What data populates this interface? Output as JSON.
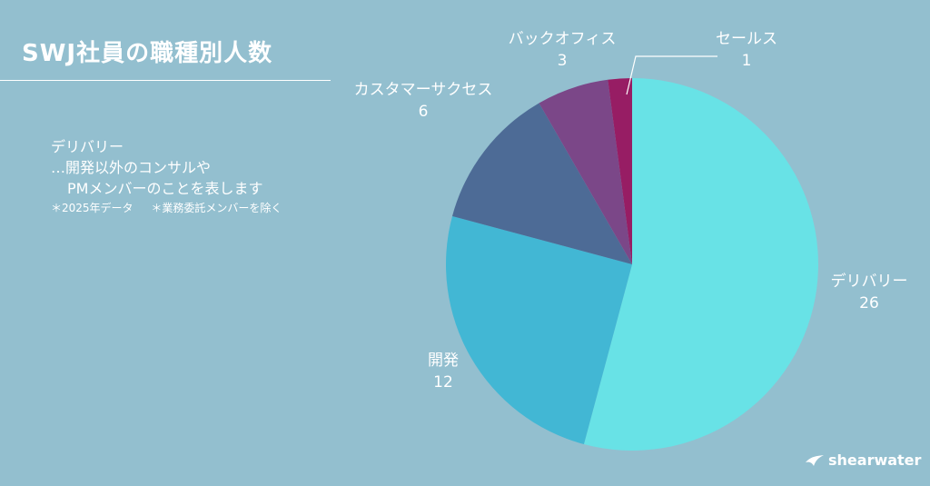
{
  "title": "SWJ社員の職種別人数",
  "note": {
    "line1": "デリバリー",
    "line2": "…開発以外のコンサルや",
    "line3": "PMメンバーのことを表します",
    "footnote1": "＊2025年データ",
    "footnote2": "＊業務委託メンバーを除く"
  },
  "logo": {
    "text": "shearwater",
    "icon": "bird-icon"
  },
  "colors": {
    "background": "#93bfcf",
    "text": "#ffffff"
  },
  "chart_data": {
    "type": "pie",
    "slices": [
      {
        "label": "デリバリー",
        "value": 26,
        "color": "#68e2e6"
      },
      {
        "label": "開発",
        "value": 12,
        "color": "#42b7d4"
      },
      {
        "label": "カスタマーサクセス",
        "value": 6,
        "color": "#4d6b96"
      },
      {
        "label": "バックオフィス",
        "value": 3,
        "color": "#7b4788"
      },
      {
        "label": "セールス",
        "value": 1,
        "color": "#971d64"
      }
    ],
    "start": "12 o'clock, clockwise",
    "legend": "none (direct labels)"
  }
}
